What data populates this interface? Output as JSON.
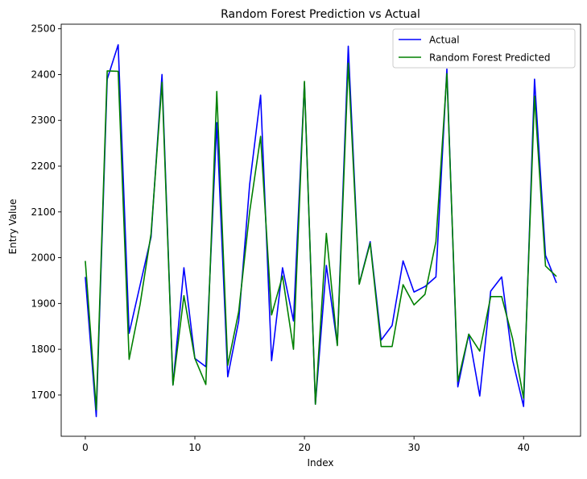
{
  "chart_data": {
    "type": "line",
    "title": "Random Forest Prediction vs Actual",
    "xlabel": "Index",
    "ylabel": "Entry Value",
    "xlim": [
      -2.2,
      45.2
    ],
    "ylim": [
      1610,
      2510
    ],
    "xticks": [
      0,
      10,
      20,
      30,
      40
    ],
    "yticks": [
      1700,
      1800,
      1900,
      2000,
      2100,
      2200,
      2300,
      2400,
      2500
    ],
    "grid": false,
    "legend_position": "top-right",
    "x": [
      0,
      1,
      2,
      3,
      4,
      5,
      6,
      7,
      8,
      9,
      10,
      11,
      12,
      13,
      14,
      15,
      16,
      17,
      18,
      19,
      20,
      21,
      22,
      23,
      24,
      25,
      26,
      27,
      28,
      29,
      30,
      31,
      32,
      33,
      34,
      35,
      36,
      37,
      38,
      39,
      40,
      41,
      42,
      43
    ],
    "series": [
      {
        "name": "Actual",
        "color": "#0000ff",
        "values": [
          1958,
          1653,
          2390,
          2465,
          1835,
          1940,
          2045,
          2400,
          1722,
          1978,
          1780,
          1762,
          2295,
          1740,
          1862,
          2160,
          2355,
          1775,
          1978,
          1862,
          2382,
          1680,
          1983,
          1810,
          2462,
          1943,
          2035,
          1820,
          1852,
          1993,
          1925,
          1937,
          1958,
          2412,
          1718,
          1833,
          1698,
          1927,
          1958,
          1776,
          1675,
          2390,
          2005,
          1945
        ]
      },
      {
        "name": "Random Forest Predicted",
        "color": "#008000",
        "values": [
          1993,
          1668,
          2408,
          2407,
          1778,
          1898,
          2052,
          2383,
          1722,
          1917,
          1780,
          1723,
          2363,
          1765,
          1882,
          2100,
          2265,
          1875,
          1960,
          1800,
          2385,
          1680,
          2053,
          1808,
          2425,
          1942,
          2032,
          1806,
          1806,
          1941,
          1897,
          1920,
          2035,
          2402,
          1730,
          1833,
          1796,
          1915,
          1915,
          1823,
          1693,
          2353,
          1982,
          1959
        ]
      }
    ]
  }
}
